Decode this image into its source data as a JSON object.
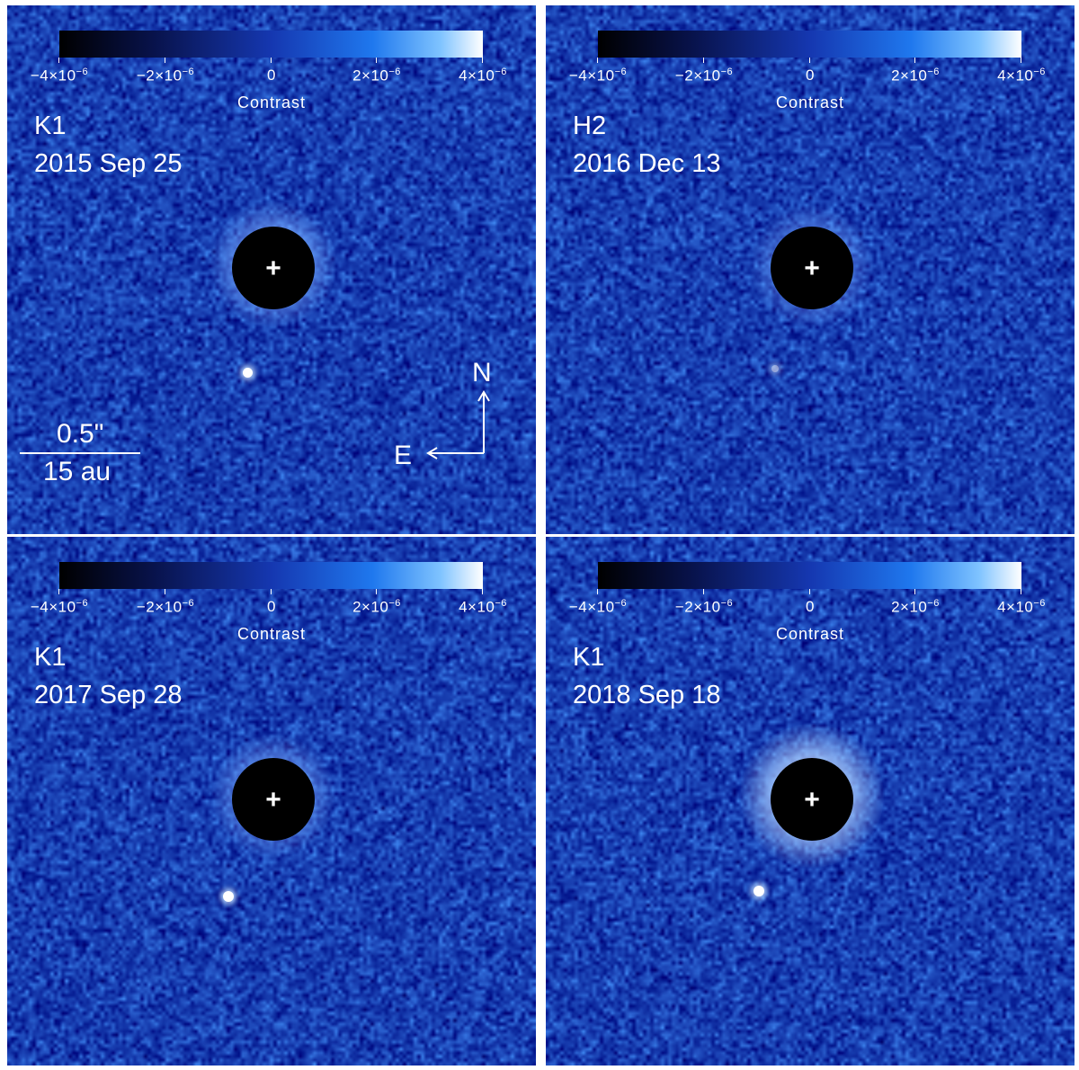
{
  "colorbar": {
    "title": "Contrast",
    "ticks": [
      {
        "base": "−4×10",
        "exp": "−6"
      },
      {
        "base": "−2×10",
        "exp": "−6"
      },
      {
        "base": "0",
        "exp": ""
      },
      {
        "base": "2×10",
        "exp": "−6"
      },
      {
        "base": "4×10",
        "exp": "−6"
      }
    ],
    "gradient": [
      "#000000",
      "#08124a",
      "#1537b0",
      "#1f78ee",
      "#7fc3ff",
      "#ffffff"
    ]
  },
  "panels": [
    {
      "band": "K1",
      "date": "2015 Sep 25"
    },
    {
      "band": "H2",
      "date": "2016 Dec 13"
    },
    {
      "band": "K1",
      "date": "2017 Sep 28"
    },
    {
      "band": "K1",
      "date": "2018 Sep 18"
    }
  ],
  "scalebar": {
    "angular": "0.5\"",
    "physical": "15 au"
  },
  "compass": {
    "north": "N",
    "east": "E"
  },
  "star_marker": "+",
  "colors": {
    "background_blue": "#1a3aa8",
    "star_mask": "#000000",
    "text": "#ffffff"
  }
}
